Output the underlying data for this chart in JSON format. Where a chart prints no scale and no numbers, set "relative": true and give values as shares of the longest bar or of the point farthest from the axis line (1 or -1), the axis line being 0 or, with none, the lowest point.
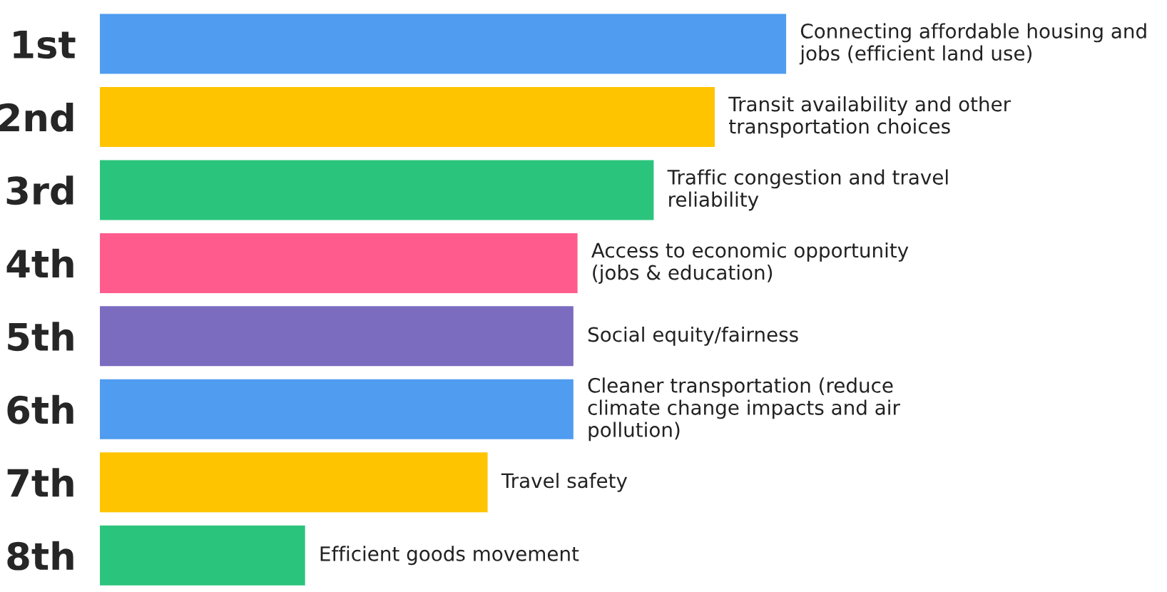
{
  "chart_data": {
    "type": "bar",
    "orientation": "horizontal",
    "relative": true,
    "categories": [
      "1st",
      "2nd",
      "3rd",
      "4th",
      "5th",
      "6th",
      "7th",
      "8th"
    ],
    "values": [
      1,
      0.896,
      0.807,
      0.696,
      0.69,
      0.69,
      0.565,
      0.299
    ],
    "colors": [
      "#4f9cf0",
      "#ffc400",
      "#2bc47d",
      "#ff5c8d",
      "#7b6cc0",
      "#4f9cf0",
      "#ffc400",
      "#2bc47d"
    ],
    "annotations": [
      {
        "text": "Connecting affordable housing and jobs (efficient land use)",
        "x": 1,
        "y": "1st"
      },
      {
        "text": "Transit availability and other transportation choices",
        "x": 0.896,
        "y": "2nd"
      },
      {
        "text": "Traffic congestion and travel reliability",
        "x": 0.807,
        "y": "3rd"
      },
      {
        "text": "Access to economic opportunity (jobs & education)",
        "x": 0.696,
        "y": "4th"
      },
      {
        "text": "Social equity/fairness",
        "x": 0.69,
        "y": "5th"
      },
      {
        "text": "Cleaner transportation (reduce climate change impacts and air pollution)",
        "x": 0.69,
        "y": "6th"
      },
      {
        "text": "Travel safety",
        "x": 0.565,
        "y": "7th"
      },
      {
        "text": "Efficient goods movement",
        "x": 0.299,
        "y": "8th"
      }
    ],
    "grid": false,
    "legend": false
  }
}
